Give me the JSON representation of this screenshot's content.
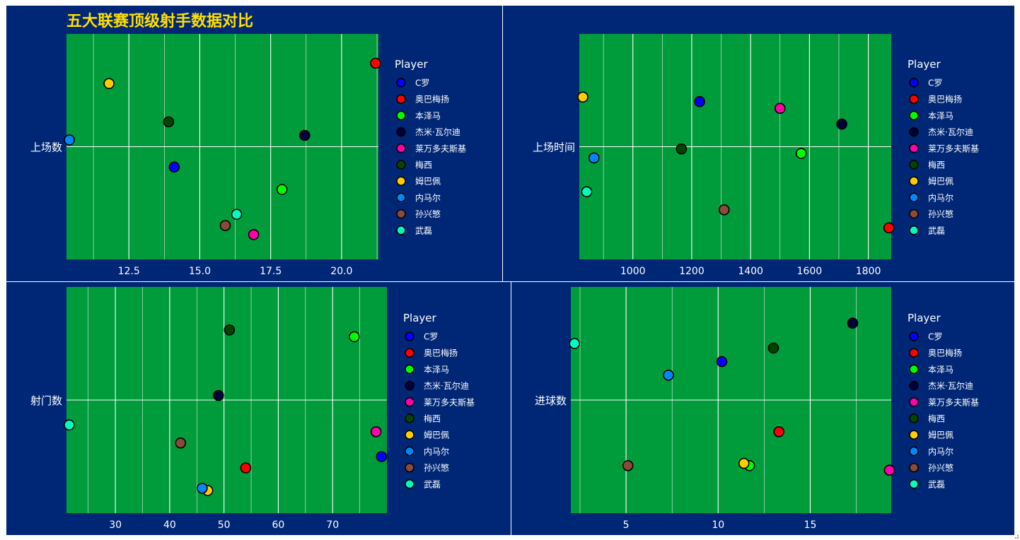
{
  "title": "五大联赛顶级射手数据对比",
  "colors": {
    "page_bg": "#002776",
    "panel_bg": "#009b3a",
    "divider": "#ffffff",
    "grid": "#ffffff",
    "text": "#ffffff",
    "title": "#ffdf00",
    "marker_edge": "#000000"
  },
  "legend": {
    "title": "Player",
    "players": [
      {
        "name": "C罗",
        "color": "#0000ff"
      },
      {
        "name": "奥巴梅扬",
        "color": "#ff0000"
      },
      {
        "name": "本泽马",
        "color": "#00ff00"
      },
      {
        "name": "杰米·瓦尔迪",
        "color": "#00003a"
      },
      {
        "name": "莱万多夫斯基",
        "color": "#ff00aa"
      },
      {
        "name": "梅西",
        "color": "#004500"
      },
      {
        "name": "姆巴佩",
        "color": "#ffcc00"
      },
      {
        "name": "内马尔",
        "color": "#0088ff"
      },
      {
        "name": "孙兴慜",
        "color": "#8b4a3a"
      },
      {
        "name": "武磊",
        "color": "#00ffbf"
      }
    ]
  },
  "chart_data": [
    {
      "type": "scatter",
      "ylabel": "上场数",
      "xlim": [
        10.3,
        21.3
      ],
      "xticks": [
        12.5,
        15.0,
        17.5,
        20.0
      ],
      "tick_labels": [
        "12.5",
        "15.0",
        "17.5",
        "20.0"
      ],
      "points": [
        {
          "player": "C罗",
          "x": 14.1,
          "y": -0.09
        },
        {
          "player": "奥巴梅扬",
          "x": 21.2,
          "y": 0.37
        },
        {
          "player": "本泽马",
          "x": 17.9,
          "y": -0.19
        },
        {
          "player": "杰米·瓦尔迪",
          "x": 18.7,
          "y": 0.05
        },
        {
          "player": "莱万多夫斯基",
          "x": 16.9,
          "y": -0.39
        },
        {
          "player": "梅西",
          "x": 13.9,
          "y": 0.11
        },
        {
          "player": "姆巴佩",
          "x": 11.8,
          "y": 0.28
        },
        {
          "player": "内马尔",
          "x": 10.4,
          "y": 0.03
        },
        {
          "player": "孙兴慜",
          "x": 15.9,
          "y": -0.35
        },
        {
          "player": "武磊",
          "x": 16.3,
          "y": -0.3
        }
      ]
    },
    {
      "type": "scatter",
      "ylabel": "上场时间",
      "xlim": [
        818,
        1878
      ],
      "xticks": [
        1000,
        1200,
        1400,
        1600,
        1800
      ],
      "tick_labels": [
        "1000",
        "1200",
        "1400",
        "1600",
        "1800"
      ],
      "points": [
        {
          "player": "C罗",
          "x": 1227,
          "y": 0.2
        },
        {
          "player": "奥巴梅扬",
          "x": 1870,
          "y": -0.36
        },
        {
          "player": "本泽马",
          "x": 1572,
          "y": -0.03
        },
        {
          "player": "杰米·瓦尔迪",
          "x": 1710,
          "y": 0.1
        },
        {
          "player": "莱万多夫斯基",
          "x": 1500,
          "y": 0.17
        },
        {
          "player": "梅西",
          "x": 1165,
          "y": -0.01
        },
        {
          "player": "姆巴佩",
          "x": 830,
          "y": 0.22
        },
        {
          "player": "内马尔",
          "x": 868,
          "y": -0.05
        },
        {
          "player": "孙兴慜",
          "x": 1310,
          "y": -0.28
        },
        {
          "player": "武磊",
          "x": 843,
          "y": -0.2
        }
      ]
    },
    {
      "type": "scatter",
      "ylabel": "射门数",
      "xlim": [
        21,
        80
      ],
      "xticks": [
        30,
        40,
        50,
        60,
        70
      ],
      "tick_labels": [
        "30",
        "40",
        "50",
        "60",
        "70"
      ],
      "points": [
        {
          "player": "C罗",
          "x": 79,
          "y": -0.25
        },
        {
          "player": "奥巴梅扬",
          "x": 54,
          "y": -0.3
        },
        {
          "player": "本泽马",
          "x": 74,
          "y": 0.28
        },
        {
          "player": "杰米·瓦尔迪",
          "x": 49,
          "y": 0.02
        },
        {
          "player": "莱万多夫斯基",
          "x": 78,
          "y": -0.14
        },
        {
          "player": "梅西",
          "x": 51,
          "y": 0.31
        },
        {
          "player": "姆巴佩",
          "x": 47,
          "y": -0.4
        },
        {
          "player": "内马尔",
          "x": 46,
          "y": -0.39
        },
        {
          "player": "孙兴慜",
          "x": 42,
          "y": -0.19
        },
        {
          "player": "武磊",
          "x": 21.5,
          "y": -0.11
        }
      ]
    },
    {
      "type": "scatter",
      "ylabel": "进球数",
      "xlim": [
        2,
        19.4
      ],
      "xticks": [
        5,
        10,
        15
      ],
      "tick_labels": [
        "5",
        "10",
        "15"
      ],
      "points": [
        {
          "player": "C罗",
          "x": 10.2,
          "y": 0.17
        },
        {
          "player": "奥巴梅扬",
          "x": 13.3,
          "y": -0.14
        },
        {
          "player": "本泽马",
          "x": 11.7,
          "y": -0.29
        },
        {
          "player": "杰米·瓦尔迪",
          "x": 17.3,
          "y": 0.34
        },
        {
          "player": "莱万多夫斯基",
          "x": 19.3,
          "y": -0.31
        },
        {
          "player": "梅西",
          "x": 13.0,
          "y": 0.23
        },
        {
          "player": "姆巴佩",
          "x": 11.4,
          "y": -0.28
        },
        {
          "player": "内马尔",
          "x": 7.3,
          "y": 0.11
        },
        {
          "player": "孙兴慜",
          "x": 5.1,
          "y": -0.29
        },
        {
          "player": "武磊",
          "x": 2.2,
          "y": 0.25
        }
      ]
    }
  ]
}
